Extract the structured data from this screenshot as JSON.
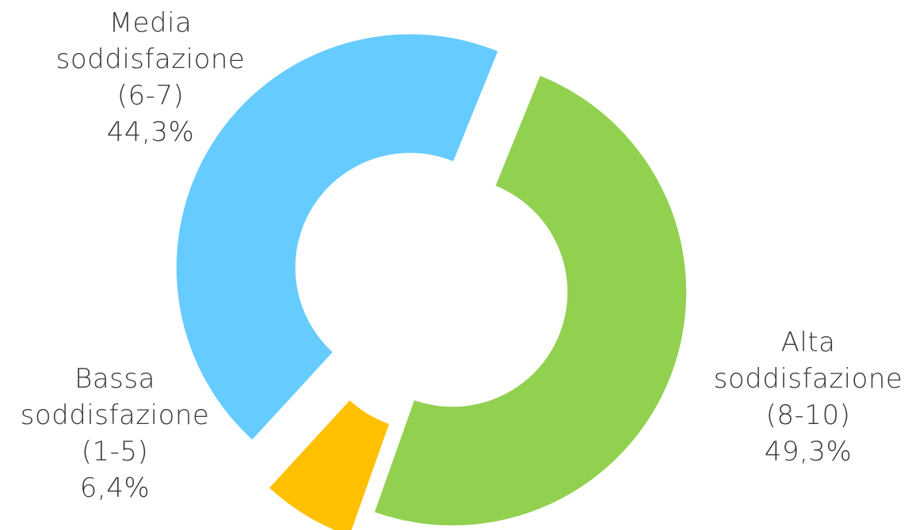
{
  "chart_data": {
    "type": "pie",
    "donut": true,
    "categories": [
      "Media soddisfazione (6-7)",
      "Alta soddisfazione (8-10)",
      "Bassa soddisfazione (1-5)"
    ],
    "values": [
      44.3,
      49.3,
      6.4
    ],
    "unit": "%",
    "colors": [
      "#66CCFF",
      "#92D050",
      "#FFC000"
    ],
    "exploded": true,
    "slices": [
      {
        "name_line1": "Media",
        "name_line2": "soddisfazione",
        "range": "(6-7)",
        "value_label": "44,3%",
        "value": 44.3,
        "color": "#66CCFF"
      },
      {
        "name_line1": "Alta",
        "name_line2": "soddisfazione",
        "range": "(8-10)",
        "value_label": "49,3%",
        "value": 49.3,
        "color": "#92D050"
      },
      {
        "name_line1": "Bassa",
        "name_line2": "soddisfazione",
        "range": "(1-5)",
        "value_label": "6,4%",
        "value": 6.4,
        "color": "#FFC000"
      }
    ],
    "legend": "none"
  }
}
